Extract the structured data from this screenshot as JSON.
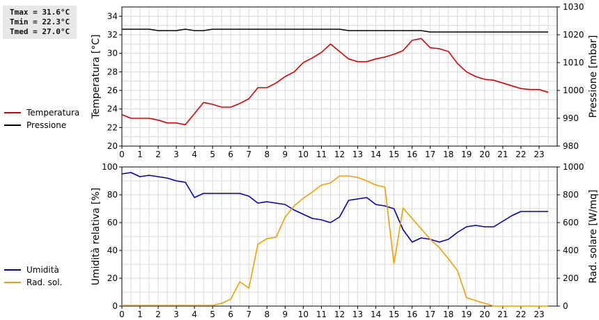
{
  "stats": {
    "tmax": "Tmax = 31.6°C",
    "tmin": "Tmin = 22.3°C",
    "tmed": "Tmed = 27.0°C"
  },
  "chart_data": [
    {
      "type": "line",
      "xlim": [
        0,
        24
      ],
      "x_ticks": [
        0,
        1,
        2,
        3,
        4,
        5,
        6,
        7,
        8,
        9,
        10,
        11,
        12,
        13,
        14,
        15,
        16,
        17,
        18,
        19,
        20,
        21,
        22,
        23
      ],
      "ylabel": "Temperatura [°C]",
      "ylim": [
        20,
        35
      ],
      "y_ticks": [
        20,
        22,
        24,
        26,
        28,
        30,
        32,
        34
      ],
      "y2label": "Pressione [mbar]",
      "y2lim": [
        980,
        1030
      ],
      "y2_ticks": [
        980,
        990,
        1000,
        1010,
        1020,
        1030
      ],
      "grid": true,
      "legend_position": "left",
      "series": [
        {
          "name": "Temperatura",
          "axis": "left",
          "color": "#dd0000",
          "x": [
            0,
            0.5,
            1,
            1.5,
            2,
            2.5,
            3,
            3.5,
            4,
            4.5,
            5,
            5.5,
            6,
            6.5,
            7,
            7.5,
            8,
            8.5,
            9,
            9.5,
            10,
            10.5,
            11,
            11.5,
            12,
            12.5,
            13,
            13.5,
            14,
            14.5,
            15,
            15.5,
            16,
            16.5,
            17,
            17.5,
            18,
            18.5,
            19,
            19.5,
            20,
            20.5,
            21,
            21.5,
            22,
            22.5,
            23,
            23.5
          ],
          "values": [
            23.4,
            23.0,
            23.0,
            23.0,
            22.8,
            22.5,
            22.5,
            22.3,
            23.5,
            24.7,
            24.5,
            24.2,
            24.2,
            24.6,
            25.1,
            26.3,
            26.3,
            26.8,
            27.5,
            28.0,
            29.0,
            29.5,
            30.1,
            31.0,
            30.2,
            29.4,
            29.1,
            29.1,
            29.4,
            29.6,
            29.9,
            30.3,
            31.4,
            31.6,
            30.6,
            30.5,
            30.2,
            28.9,
            28.0,
            27.5,
            27.2,
            27.1,
            26.8,
            26.5,
            26.2,
            26.1,
            26.1,
            25.8
          ]
        },
        {
          "name": "Pressione",
          "axis": "right",
          "color": "#000000",
          "x": [
            0,
            0.5,
            1,
            1.5,
            2,
            2.5,
            3,
            3.5,
            4,
            4.5,
            5,
            5.5,
            6,
            6.5,
            7,
            7.5,
            8,
            8.5,
            9,
            9.5,
            10,
            10.5,
            11,
            11.5,
            12,
            12.5,
            13,
            13.5,
            14,
            14.5,
            15,
            15.5,
            16,
            16.5,
            17,
            17.5,
            18,
            18.5,
            19,
            19.5,
            20,
            20.5,
            21,
            21.5,
            22,
            22.5,
            23,
            23.5
          ],
          "values": [
            1022,
            1022,
            1022,
            1022,
            1021.5,
            1021.5,
            1021.5,
            1022,
            1021.5,
            1021.5,
            1022,
            1022,
            1022,
            1022,
            1022,
            1022,
            1022,
            1022,
            1022,
            1022,
            1022,
            1022,
            1022,
            1022,
            1022,
            1021.5,
            1021.5,
            1021.5,
            1021.5,
            1021.5,
            1021.5,
            1021.5,
            1021.5,
            1021.5,
            1021,
            1021,
            1021,
            1021,
            1021,
            1021,
            1021,
            1021,
            1021,
            1021,
            1021,
            1021,
            1021,
            1021
          ]
        }
      ]
    },
    {
      "type": "line",
      "xlim": [
        0,
        24
      ],
      "x_ticks": [
        0,
        1,
        2,
        3,
        4,
        5,
        6,
        7,
        8,
        9,
        10,
        11,
        12,
        13,
        14,
        15,
        16,
        17,
        18,
        19,
        20,
        21,
        22,
        23
      ],
      "ylabel": "Umidità relativa [%]",
      "ylim": [
        0,
        100
      ],
      "y_ticks": [
        0,
        20,
        40,
        60,
        80,
        100
      ],
      "y2label": "Rad. solare [W/mq]",
      "y2lim": [
        0,
        1000
      ],
      "y2_ticks": [
        0,
        200,
        400,
        600,
        800,
        1000
      ],
      "grid": true,
      "legend_position": "left",
      "series": [
        {
          "name": "Umidità",
          "axis": "left",
          "color": "#0000bb",
          "x": [
            0,
            0.5,
            1,
            1.5,
            2,
            2.5,
            3,
            3.5,
            4,
            4.5,
            5,
            5.5,
            6,
            6.5,
            7,
            7.5,
            8,
            8.5,
            9,
            9.5,
            10,
            10.5,
            11,
            11.5,
            12,
            12.5,
            13,
            13.5,
            14,
            14.5,
            15,
            15.5,
            16,
            16.5,
            17,
            17.5,
            18,
            18.5,
            19,
            19.5,
            20,
            20.5,
            21,
            21.5,
            22,
            22.5,
            23,
            23.5
          ],
          "values": [
            95,
            96,
            93,
            94,
            93,
            92,
            90,
            89,
            78,
            81,
            81,
            81,
            81,
            81,
            79,
            74,
            75,
            74,
            73,
            69,
            66,
            63,
            62,
            60,
            64,
            76,
            77,
            78,
            73,
            72,
            70,
            55,
            46,
            49,
            48,
            46,
            48,
            53,
            57,
            58,
            57,
            57,
            61,
            65,
            68,
            68,
            68,
            68
          ]
        },
        {
          "name": "Rad. sol.",
          "axis": "right",
          "color": "#f0a000",
          "x": [
            0,
            0.5,
            1,
            1.5,
            2,
            2.5,
            3,
            3.5,
            4,
            4.5,
            5,
            5.5,
            6,
            6.5,
            7,
            7.5,
            8,
            8.5,
            9,
            9.5,
            10,
            10.5,
            11,
            11.5,
            12,
            12.5,
            13,
            13.5,
            14,
            14.5,
            15,
            15.5,
            16,
            16.5,
            17,
            17.5,
            18,
            18.5,
            19,
            19.5,
            20,
            20.5,
            21,
            21.5,
            22,
            22.5,
            23,
            23.5
          ],
          "values": [
            5,
            5,
            5,
            5,
            5,
            5,
            5,
            5,
            5,
            5,
            5,
            20,
            50,
            175,
            130,
            445,
            485,
            495,
            640,
            720,
            775,
            820,
            870,
            885,
            935,
            935,
            925,
            900,
            870,
            855,
            305,
            705,
            630,
            555,
            480,
            420,
            340,
            255,
            60,
            40,
            20,
            0,
            0,
            0,
            0,
            0,
            0,
            0
          ]
        }
      ]
    }
  ]
}
